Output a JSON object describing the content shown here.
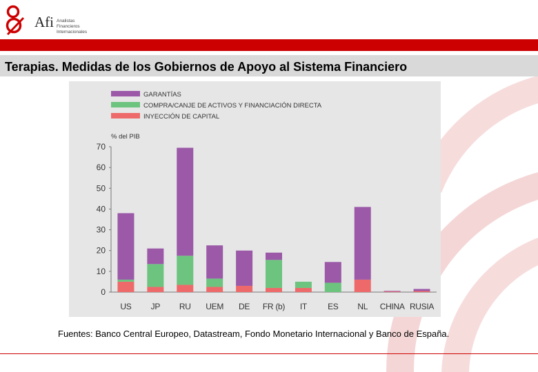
{
  "header": {
    "logo_text": "Afi",
    "logo_sub_lines": [
      "Analistas",
      "Financieros",
      "Internacionales"
    ]
  },
  "title": "Terapias. Medidas de los Gobiernos de Apoyo al Sistema Financiero",
  "source": "Fuentes: Banco Central Europeo, Datastream, Fondo Monetario Internacional y Banco de España.",
  "colors": {
    "accent_red": "#cc0000",
    "garantias": "#9b59a8",
    "compra": "#6cc47f",
    "inyeccion": "#ee6a6a"
  },
  "chart_data": {
    "type": "bar",
    "stacked": true,
    "ylabel": "% del PIB",
    "ylim": [
      0,
      70
    ],
    "yticks": [
      0,
      10,
      20,
      30,
      40,
      50,
      60,
      70
    ],
    "categories": [
      "US",
      "JP",
      "RU",
      "UEM",
      "DE",
      "FR (b)",
      "IT",
      "ES",
      "NL",
      "CHINA",
      "RUSIA"
    ],
    "series": [
      {
        "name": "INYECCIÓN DE CAPITAL",
        "values": [
          5,
          2.5,
          3.5,
          2.5,
          3,
          2,
          2,
          0,
          6,
          0.3,
          0.5
        ]
      },
      {
        "name": "COMPRA/CANJE DE ACTIVOS Y FINANCIACIÓN DIRECTA",
        "values": [
          1,
          11,
          14,
          4,
          0,
          13.5,
          3,
          4.5,
          0,
          0,
          0
        ]
      },
      {
        "name": "GARANTÍAS",
        "values": [
          32,
          7.5,
          52,
          16,
          17,
          3.5,
          0,
          10,
          35,
          0.3,
          1
        ]
      }
    ],
    "legend_order": [
      "GARANTÍAS",
      "COMPRA/CANJE DE ACTIVOS Y FINANCIACIÓN DIRECTA",
      "INYECCIÓN DE CAPITAL"
    ],
    "legend_position": "top-left"
  }
}
